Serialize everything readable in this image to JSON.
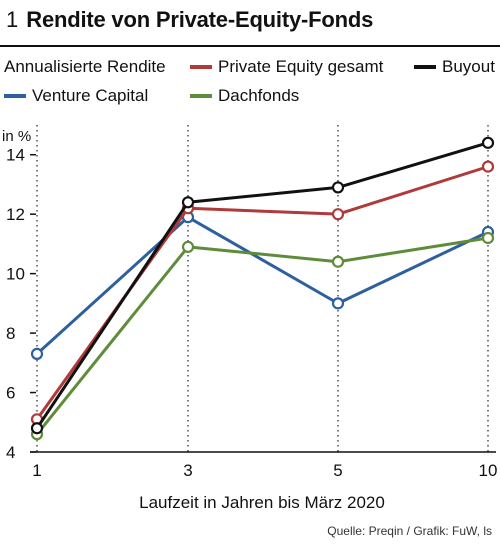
{
  "title": {
    "number": "1",
    "text": "Rendite von Private-Equity-Fonds"
  },
  "legend": {
    "heading": "Annualisierte Rendite",
    "items": [
      {
        "label": "Private Equity gesamt",
        "color": "#b03a3a"
      },
      {
        "label": "Buyout",
        "color": "#111111"
      },
      {
        "label": "Venture Capital",
        "color": "#2e5f9e"
      },
      {
        "label": "Dachfonds",
        "color": "#5f8c3a"
      }
    ]
  },
  "source": "Quelle: Preqin / Grafik: FuW, ls",
  "chart_data": {
    "type": "line",
    "unit": "in %",
    "xlabel": "Laufzeit in Jahren bis März 2020",
    "categories": [
      "1",
      "3",
      "5",
      "10"
    ],
    "ylim": [
      4,
      15
    ],
    "yticks": [
      4,
      6,
      8,
      10,
      12,
      14
    ],
    "grid": "vertical-dotted",
    "series": [
      {
        "name": "Venture Capital",
        "color": "#2e5f9e",
        "values": [
          7.3,
          11.9,
          9.0,
          11.4
        ]
      },
      {
        "name": "Dachfonds",
        "color": "#5f8c3a",
        "values": [
          4.6,
          10.9,
          10.4,
          11.2
        ]
      },
      {
        "name": "Private Equity gesamt",
        "color": "#b03a3a",
        "values": [
          5.1,
          12.2,
          12.0,
          13.6
        ]
      },
      {
        "name": "Buyout",
        "color": "#111111",
        "values": [
          4.8,
          12.4,
          12.9,
          14.4
        ]
      }
    ]
  }
}
